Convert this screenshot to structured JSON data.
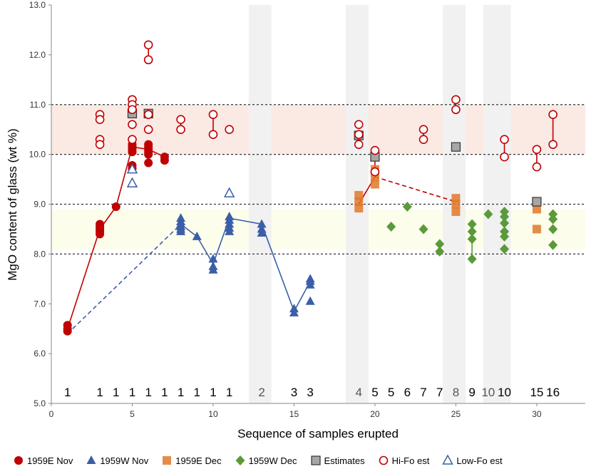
{
  "chart_data": {
    "type": "scatter",
    "xlabel": "Sequence of samples erupted",
    "ylabel": "MgO content of glass (wt %)",
    "xlim": [
      0,
      33
    ],
    "ylim": [
      5.0,
      13.0
    ],
    "x_ticks": [
      0,
      5,
      10,
      15,
      20,
      25,
      30
    ],
    "y_ticks": [
      "5.0",
      "6.0",
      "7.0",
      "8.0",
      "9.0",
      "10.0",
      "11.0",
      "12.0",
      "13.0"
    ],
    "grid": false,
    "reference_lines_y": [
      8.0,
      9.0,
      10.0,
      11.0
    ],
    "bands": [
      {
        "y_range": [
          10.0,
          11.0
        ],
        "color": "#fbe9e4"
      },
      {
        "y_range": [
          8.1,
          8.9
        ],
        "color": "#fdfdec"
      }
    ],
    "shaded_columns": [
      {
        "x_range": [
          12.2,
          13.6
        ],
        "color": "#f1f1f1"
      },
      {
        "x_range": [
          18.2,
          19.6
        ],
        "color": "#f1f1f1"
      },
      {
        "x_range": [
          24.2,
          25.6
        ],
        "color": "#f1f1f1"
      },
      {
        "x_range": [
          26.7,
          28.4
        ],
        "color": "#f1f1f1"
      }
    ],
    "episode_labels": [
      {
        "x": 1,
        "label": "1",
        "color": "#000000"
      },
      {
        "x": 3,
        "label": "1",
        "color": "#000000"
      },
      {
        "x": 4,
        "label": "1",
        "color": "#000000"
      },
      {
        "x": 5,
        "label": "1",
        "color": "#000000"
      },
      {
        "x": 6,
        "label": "1",
        "color": "#000000"
      },
      {
        "x": 7,
        "label": "1",
        "color": "#000000"
      },
      {
        "x": 8,
        "label": "1",
        "color": "#000000"
      },
      {
        "x": 9,
        "label": "1",
        "color": "#000000"
      },
      {
        "x": 10,
        "label": "1",
        "color": "#000000"
      },
      {
        "x": 11,
        "label": "1",
        "color": "#000000"
      },
      {
        "x": 13,
        "label": "2",
        "color": "#555555"
      },
      {
        "x": 15,
        "label": "3",
        "color": "#000000"
      },
      {
        "x": 16,
        "label": "3",
        "color": "#000000"
      },
      {
        "x": 19,
        "label": "4",
        "color": "#555555"
      },
      {
        "x": 20,
        "label": "5",
        "color": "#000000"
      },
      {
        "x": 21,
        "label": "5",
        "color": "#000000"
      },
      {
        "x": 22,
        "label": "6",
        "color": "#000000"
      },
      {
        "x": 23,
        "label": "7",
        "color": "#000000"
      },
      {
        "x": 24,
        "label": "7",
        "color": "#000000"
      },
      {
        "x": 25,
        "label": "8",
        "color": "#555555"
      },
      {
        "x": 26,
        "label": "9",
        "color": "#000000"
      },
      {
        "x": 27,
        "label": "10",
        "color": "#555555"
      },
      {
        "x": 28,
        "label": "10",
        "color": "#000000"
      },
      {
        "x": 30,
        "label": "15",
        "color": "#000000"
      },
      {
        "x": 31,
        "label": "16",
        "color": "#000000"
      }
    ],
    "series": [
      {
        "name": "1959E Nov",
        "marker": "circle-filled",
        "color": "#c00000",
        "points": [
          [
            1,
            6.57
          ],
          [
            1,
            6.5
          ],
          [
            1,
            6.45
          ],
          [
            3,
            8.6
          ],
          [
            3,
            8.55
          ],
          [
            3,
            8.5
          ],
          [
            3,
            8.45
          ],
          [
            3,
            8.4
          ],
          [
            4,
            8.95
          ],
          [
            5,
            10.2
          ],
          [
            5,
            10.15
          ],
          [
            5,
            10.1
          ],
          [
            5,
            10.05
          ],
          [
            5,
            9.78
          ],
          [
            5,
            9.72
          ],
          [
            6,
            10.2
          ],
          [
            6,
            10.15
          ],
          [
            6,
            10.1
          ],
          [
            6,
            10.05
          ],
          [
            6,
            10.0
          ],
          [
            6,
            9.83
          ],
          [
            7,
            9.95
          ],
          [
            7,
            9.88
          ]
        ],
        "trend": [
          [
            1,
            6.5
          ],
          [
            3,
            8.5
          ],
          [
            4,
            8.95
          ],
          [
            5,
            10.15
          ],
          [
            6,
            10.1
          ],
          [
            7,
            9.95
          ]
        ],
        "trend_style": "solid"
      },
      {
        "name": "1959W Nov",
        "marker": "triangle-filled",
        "color": "#3b5ea8",
        "points": [
          [
            8,
            8.72
          ],
          [
            8,
            8.65
          ],
          [
            8,
            8.6
          ],
          [
            8,
            8.55
          ],
          [
            8,
            8.5
          ],
          [
            8,
            8.45
          ],
          [
            9,
            8.35
          ],
          [
            10,
            7.9
          ],
          [
            10,
            7.75
          ],
          [
            10,
            7.68
          ],
          [
            11,
            8.75
          ],
          [
            11,
            8.68
          ],
          [
            11,
            8.6
          ],
          [
            11,
            8.52
          ],
          [
            11,
            8.45
          ],
          [
            13,
            8.6
          ],
          [
            13,
            8.5
          ],
          [
            13,
            8.42
          ],
          [
            15,
            6.9
          ],
          [
            15,
            6.82
          ],
          [
            16,
            7.5
          ],
          [
            16,
            7.45
          ],
          [
            16,
            7.38
          ],
          [
            16,
            7.05
          ]
        ],
        "trend": [
          [
            8,
            8.6
          ],
          [
            9,
            8.35
          ],
          [
            10,
            7.8
          ],
          [
            11,
            8.72
          ],
          [
            13,
            8.6
          ],
          [
            15,
            6.85
          ],
          [
            16,
            7.45
          ]
        ],
        "trend_style": "solid"
      },
      {
        "name": "1959E Dec",
        "marker": "square-filled",
        "color": "#e0782a",
        "points": [
          [
            19,
            9.18
          ],
          [
            19,
            9.05
          ],
          [
            19,
            8.92
          ],
          [
            20,
            9.7
          ],
          [
            20,
            9.55
          ],
          [
            20,
            9.4
          ],
          [
            25,
            9.12
          ],
          [
            25,
            9.0
          ],
          [
            25,
            8.85
          ],
          [
            30,
            9.05
          ],
          [
            30,
            8.9
          ],
          [
            30,
            8.5
          ]
        ],
        "trend": [],
        "trend_style": "solid"
      },
      {
        "name": "1959W Dec",
        "marker": "diamond-filled",
        "color": "#5a9a3a",
        "points": [
          [
            21,
            8.55
          ],
          [
            22,
            8.95
          ],
          [
            23,
            8.5
          ],
          [
            24,
            8.2
          ],
          [
            24,
            8.05
          ],
          [
            26,
            8.6
          ],
          [
            26,
            8.45
          ],
          [
            26,
            8.3
          ],
          [
            26,
            7.9
          ],
          [
            27,
            8.8
          ],
          [
            28,
            8.85
          ],
          [
            28,
            8.75
          ],
          [
            28,
            8.62
          ],
          [
            28,
            8.45
          ],
          [
            28,
            8.35
          ],
          [
            28,
            8.1
          ],
          [
            31,
            8.8
          ],
          [
            31,
            8.7
          ],
          [
            31,
            8.5
          ],
          [
            31,
            8.18
          ]
        ],
        "trend": [
          [
            26,
            8.6
          ],
          [
            26,
            7.9
          ]
        ],
        "trend_style": "solid"
      },
      {
        "name": "Estimates",
        "marker": "square-gray",
        "color": "#999999",
        "points": [
          [
            5,
            10.82
          ],
          [
            6,
            10.82
          ],
          [
            19,
            10.38
          ],
          [
            20,
            9.95
          ],
          [
            25,
            10.15
          ],
          [
            30,
            9.05
          ]
        ],
        "trend": [],
        "trend_style": "solid"
      },
      {
        "name": "Hi-Fo est",
        "marker": "circle-open",
        "color": "#c00000",
        "points": [
          [
            3,
            10.8
          ],
          [
            3,
            10.7
          ],
          [
            3,
            10.3
          ],
          [
            3,
            10.2
          ],
          [
            5,
            11.1
          ],
          [
            5,
            11.0
          ],
          [
            5,
            10.9
          ],
          [
            5,
            10.6
          ],
          [
            5,
            10.3
          ],
          [
            6,
            12.2
          ],
          [
            6,
            11.9
          ],
          [
            6,
            10.8
          ],
          [
            6,
            10.5
          ],
          [
            8,
            10.7
          ],
          [
            8,
            10.5
          ],
          [
            10,
            10.8
          ],
          [
            10,
            10.4
          ],
          [
            11,
            10.5
          ],
          [
            19,
            10.6
          ],
          [
            19,
            10.4
          ],
          [
            19,
            10.2
          ],
          [
            20,
            10.08
          ],
          [
            20,
            9.65
          ],
          [
            23,
            10.5
          ],
          [
            23,
            10.3
          ],
          [
            25,
            11.1
          ],
          [
            25,
            10.9
          ],
          [
            28,
            10.3
          ],
          [
            28,
            9.95
          ],
          [
            30,
            10.1
          ],
          [
            30,
            9.75
          ],
          [
            31,
            10.8
          ],
          [
            31,
            10.2
          ]
        ],
        "trend": [],
        "trend_style": "solid"
      },
      {
        "name": "Low-Fo est",
        "marker": "triangle-open",
        "color": "#3b5ea8",
        "points": [
          [
            5,
            9.7
          ],
          [
            5,
            9.42
          ],
          [
            11,
            9.22
          ]
        ],
        "trend": [],
        "trend_style": "solid"
      }
    ],
    "extra_lines": [
      {
        "points": [
          [
            1,
            6.4
          ],
          [
            8,
            8.6
          ]
        ],
        "style": "dashed",
        "color": "#3b5ea8"
      },
      {
        "points": [
          [
            19,
            9.0
          ],
          [
            20,
            9.55
          ]
        ],
        "style": "solid",
        "color": "#c00000"
      },
      {
        "points": [
          [
            20,
            9.55
          ],
          [
            25,
            9.05
          ]
        ],
        "style": "dashed",
        "color": "#c00000"
      },
      {
        "points": [
          [
            3,
            10.8
          ],
          [
            3,
            10.7
          ]
        ],
        "style": "solid",
        "color": "#c00000"
      },
      {
        "points": [
          [
            3,
            10.3
          ],
          [
            3,
            10.2
          ]
        ],
        "style": "solid",
        "color": "#c00000"
      },
      {
        "points": [
          [
            6,
            12.2
          ],
          [
            6,
            11.9
          ]
        ],
        "style": "solid",
        "color": "#c00000"
      },
      {
        "points": [
          [
            8,
            10.7
          ],
          [
            8,
            10.5
          ]
        ],
        "style": "solid",
        "color": "#c00000"
      },
      {
        "points": [
          [
            10,
            10.8
          ],
          [
            10,
            10.4
          ]
        ],
        "style": "solid",
        "color": "#c00000"
      },
      {
        "points": [
          [
            23,
            10.5
          ],
          [
            23,
            10.3
          ]
        ],
        "style": "solid",
        "color": "#c00000"
      },
      {
        "points": [
          [
            25,
            11.1
          ],
          [
            25,
            10.9
          ]
        ],
        "style": "solid",
        "color": "#c00000"
      },
      {
        "points": [
          [
            28,
            10.3
          ],
          [
            28,
            9.95
          ]
        ],
        "style": "solid",
        "color": "#c00000"
      },
      {
        "points": [
          [
            30,
            10.1
          ],
          [
            30,
            9.75
          ]
        ],
        "style": "solid",
        "color": "#c00000"
      },
      {
        "points": [
          [
            31,
            10.8
          ],
          [
            31,
            10.2
          ]
        ],
        "style": "solid",
        "color": "#c00000"
      },
      {
        "points": [
          [
            20,
            10.08
          ],
          [
            20,
            9.65
          ]
        ],
        "style": "solid",
        "color": "#c00000"
      }
    ]
  }
}
